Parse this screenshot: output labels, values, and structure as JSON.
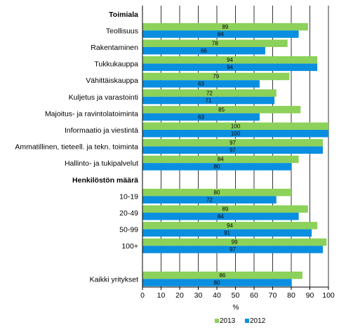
{
  "chart_data": {
    "type": "bar",
    "orientation": "horizontal",
    "xlabel": "%",
    "xlim": [
      0,
      100
    ],
    "xticks": [
      "0",
      "10",
      "20",
      "30",
      "40",
      "50",
      "60",
      "70",
      "80",
      "90",
      "100"
    ],
    "grid": "vertical",
    "legend_position": "bottom-right",
    "colors": {
      "2013": "#8cd15a",
      "2012": "#0a8fe0"
    },
    "series": [
      {
        "name": "2013",
        "color": "#8cd15a"
      },
      {
        "name": "2012",
        "color": "#0a8fe0"
      }
    ],
    "rows": [
      {
        "kind": "section",
        "label": "Toimiala"
      },
      {
        "kind": "cat",
        "label": "Teollisuus",
        "values": [
          89,
          84
        ]
      },
      {
        "kind": "cat",
        "label": "Rakentaminen",
        "values": [
          78,
          66
        ]
      },
      {
        "kind": "cat",
        "label": "Tukkukauppa",
        "values": [
          94,
          94
        ]
      },
      {
        "kind": "cat",
        "label": "Vähittäiskauppa",
        "values": [
          79,
          63
        ]
      },
      {
        "kind": "cat",
        "label": "Kuljetus ja varastointi",
        "values": [
          72,
          71
        ]
      },
      {
        "kind": "cat",
        "label": "Majoitus- ja ravintolatoiminta",
        "values": [
          85,
          63
        ]
      },
      {
        "kind": "cat",
        "label": "Informaatio ja viestintä",
        "values": [
          100,
          100
        ]
      },
      {
        "kind": "cat",
        "label": "Ammatillinen, tieteell. ja tekn. toiminta",
        "values": [
          97,
          97
        ]
      },
      {
        "kind": "cat",
        "label": "Hallinto- ja tukipalvelut",
        "values": [
          84,
          80
        ]
      },
      {
        "kind": "section",
        "label": "Henkilöstön määrä"
      },
      {
        "kind": "cat",
        "label": "10-19",
        "values": [
          80,
          72
        ]
      },
      {
        "kind": "cat",
        "label": "20-49",
        "values": [
          89,
          84
        ]
      },
      {
        "kind": "cat",
        "label": "50-99",
        "values": [
          94,
          91
        ]
      },
      {
        "kind": "cat",
        "label": "100+",
        "values": [
          99,
          97
        ]
      },
      {
        "kind": "gap"
      },
      {
        "kind": "cat",
        "label": "Kaikki yritykset",
        "values": [
          86,
          80
        ]
      }
    ]
  }
}
